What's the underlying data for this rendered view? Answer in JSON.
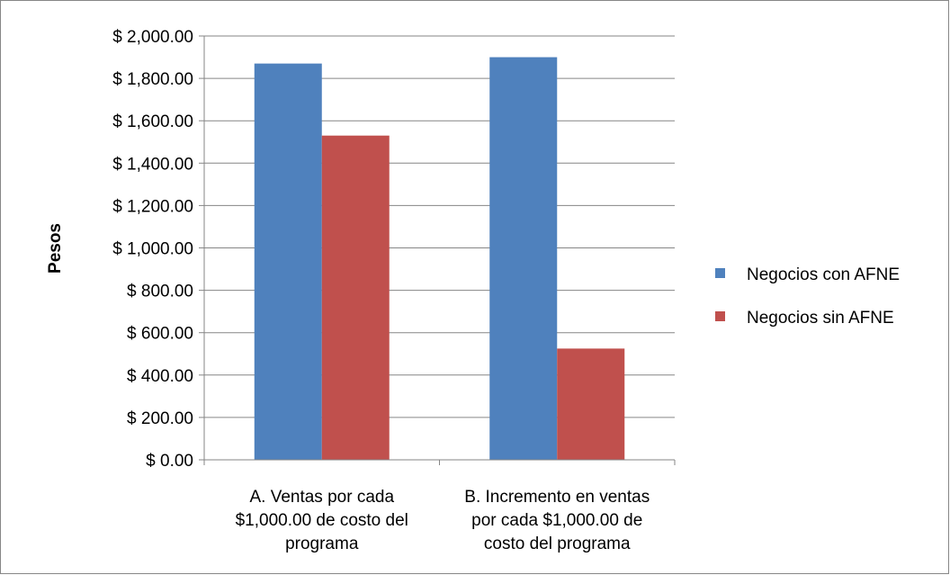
{
  "chart_data": {
    "type": "bar",
    "categories": [
      [
        "A. Ventas por cada",
        "$1,000.00 de costo del",
        "programa"
      ],
      [
        "B. Incremento en ventas",
        "por cada $1,000.00 de",
        "costo del programa"
      ]
    ],
    "series": [
      {
        "name": "Negocios con AFNE",
        "color": "#4F81BD",
        "values": [
          1870,
          1900
        ]
      },
      {
        "name": "Negocios sin AFNE",
        "color": "#C0504D",
        "values": [
          1530,
          525
        ]
      }
    ],
    "ylabel": "Pesos",
    "ylim": [
      0,
      2000
    ],
    "yticks": [
      0,
      200,
      400,
      600,
      800,
      1000,
      1200,
      1400,
      1600,
      1800,
      2000
    ],
    "ytick_labels": [
      "$ 0.00",
      "$ 200.00",
      "$ 400.00",
      "$ 600.00",
      "$ 800.00",
      "$ 1,000.00",
      "$ 1,200.00",
      "$ 1,400.00",
      "$ 1,600.00",
      "$ 1,800.00",
      "$ 2,000.00"
    ],
    "grid": true,
    "legend_position": "right"
  }
}
